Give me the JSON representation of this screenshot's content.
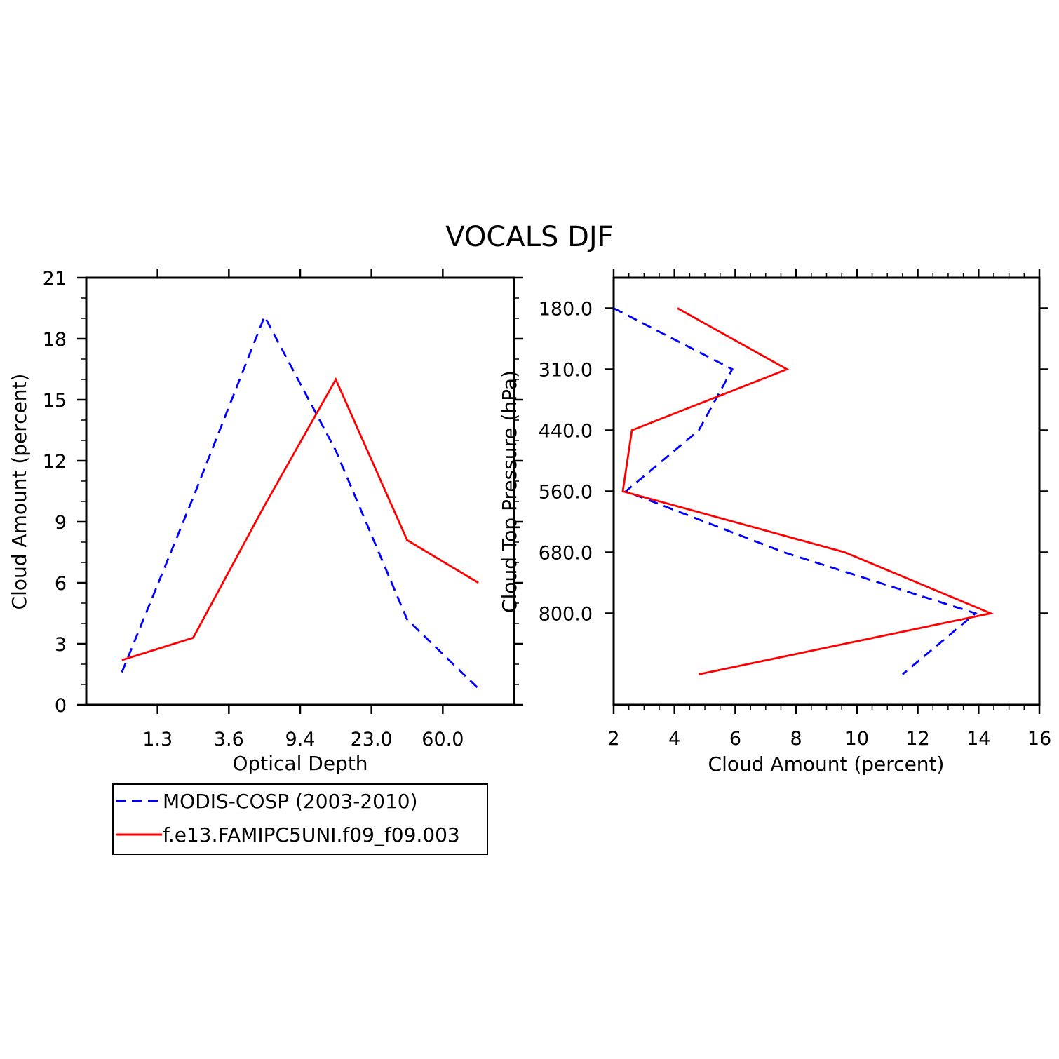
{
  "title": "VOCALS DJF",
  "colors": {
    "obs": "#0000ff",
    "model": "#ff0000"
  },
  "legend": {
    "items": [
      {
        "label": "MODIS-COSP (2003-2010)",
        "color": "#0000ff",
        "dash": "dashed"
      },
      {
        "label": "f.e13.FAMIPC5UNI.f09_f09.003",
        "color": "#ff0000",
        "dash": "solid"
      }
    ]
  },
  "chart_data": [
    {
      "type": "line",
      "panel": "left",
      "xlabel": "Optical Depth",
      "ylabel": "Cloud Amount (percent)",
      "x_bins": [
        0.3,
        1.3,
        3.6,
        9.4,
        23.0,
        60.0,
        150.0
      ],
      "x_tick_labels": [
        "1.3",
        "3.6",
        "9.4",
        "23.0",
        "60.0"
      ],
      "ylim": [
        0,
        21
      ],
      "y_ticks": [
        0,
        3,
        6,
        9,
        12,
        15,
        18,
        21
      ],
      "series": [
        {
          "name": "MODIS-COSP (2003-2010)",
          "color": "#0000ff",
          "dash": "dashed",
          "values": [
            1.6,
            10.2,
            19.1,
            12.5,
            4.2,
            0.8
          ]
        },
        {
          "name": "f.e13.FAMIPC5UNI.f09_f09.003",
          "color": "#ff0000",
          "dash": "solid",
          "values": [
            2.2,
            3.3,
            9.8,
            16.0,
            8.1,
            6.0
          ]
        }
      ]
    },
    {
      "type": "line",
      "panel": "right",
      "xlabel": "Cloud Amount (percent)",
      "ylabel": "Cloud Top Pressure (hPa)",
      "xlim": [
        2,
        16
      ],
      "x_ticks": [
        2,
        4,
        6,
        8,
        10,
        12,
        14,
        16
      ],
      "y_bounds": [
        50,
        180,
        310,
        440,
        560,
        680,
        800,
        1000
      ],
      "y_tick_labels": [
        "180.0",
        "310.0",
        "440.0",
        "560.0",
        "680.0",
        "800.0"
      ],
      "series": [
        {
          "name": "MODIS-COSP (2003-2010)",
          "color": "#0000ff",
          "dash": "dashed",
          "values": [
            2.0,
            5.9,
            4.8,
            2.4,
            7.6,
            13.9,
            11.5
          ]
        },
        {
          "name": "f.e13.FAMIPC5UNI.f09_f09.003",
          "color": "#ff0000",
          "dash": "solid",
          "values": [
            4.1,
            7.7,
            2.6,
            2.3,
            9.6,
            14.4,
            4.8
          ]
        }
      ]
    }
  ]
}
